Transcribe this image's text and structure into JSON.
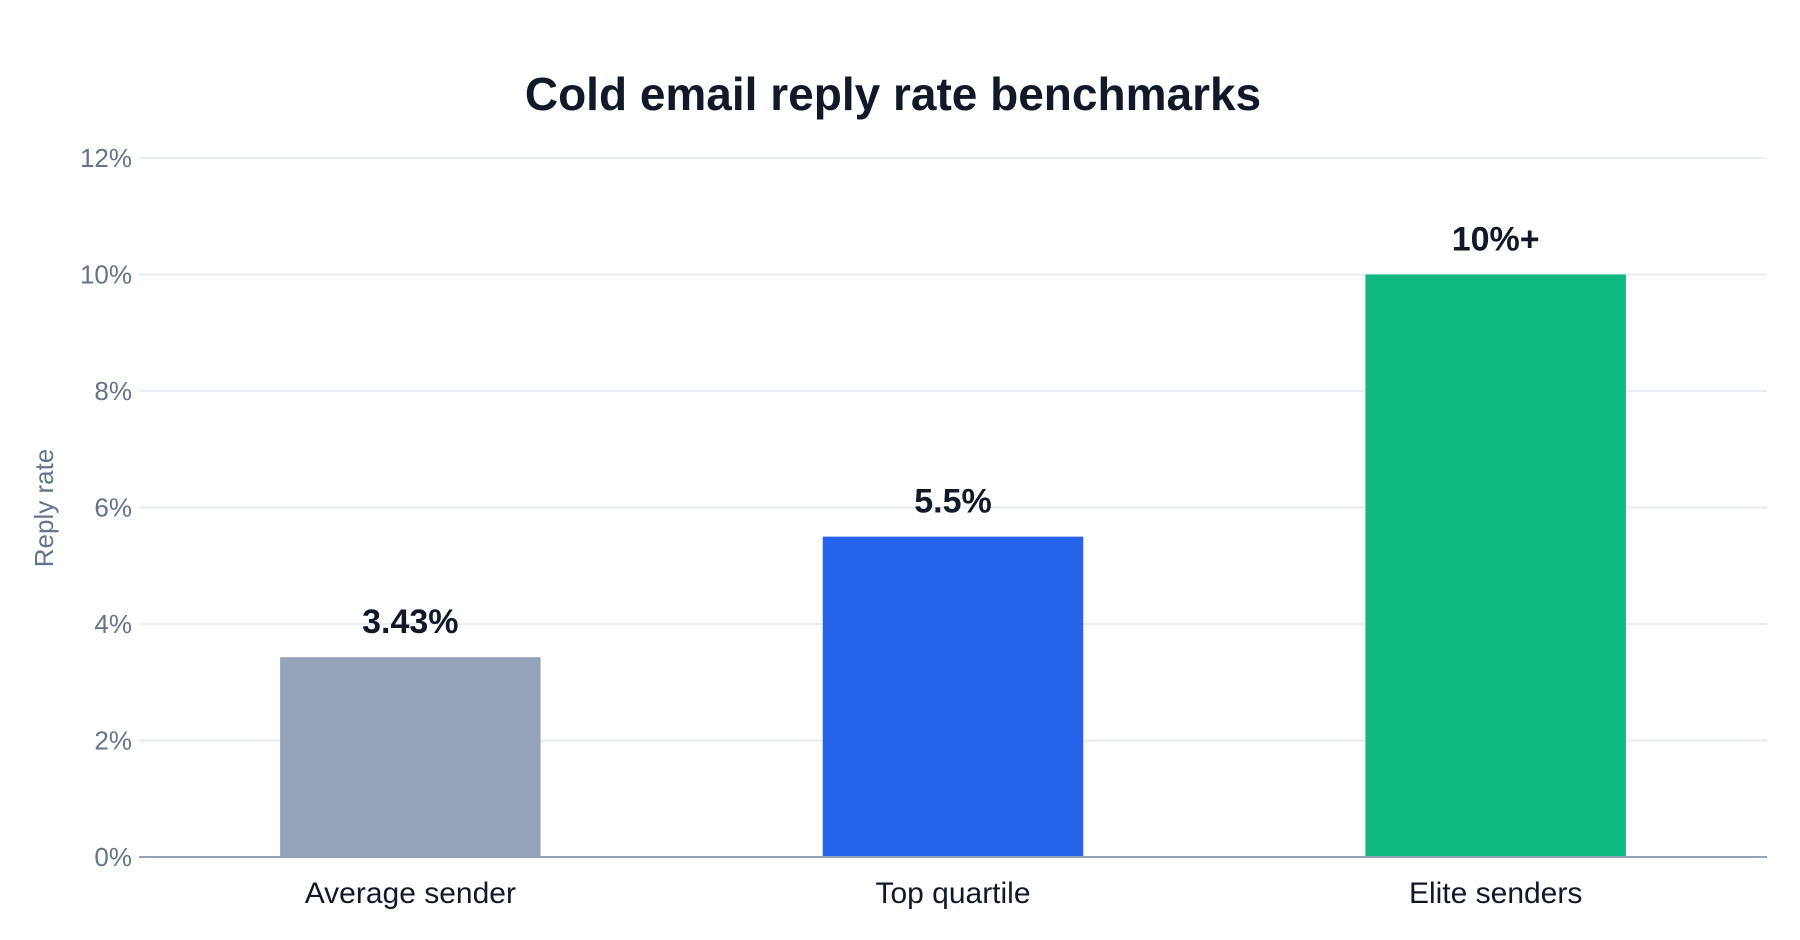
{
  "chart_data": {
    "type": "bar",
    "title": "Cold email reply rate benchmarks",
    "xlabel": "",
    "ylabel": "Reply rate",
    "categories": [
      "Average sender",
      "Top quartile",
      "Elite senders"
    ],
    "values": [
      3.43,
      5.5,
      10
    ],
    "data_labels": [
      "3.43%",
      "5.5%",
      "10%+"
    ],
    "colors": [
      "#94a3b8",
      "#2563eb",
      "#10b981"
    ],
    "ylim": [
      0,
      12
    ],
    "yticks": [
      0,
      2,
      4,
      6,
      8,
      10,
      12
    ],
    "ytick_labels": [
      "0%",
      "2%",
      "4%",
      "6%",
      "8%",
      "10%",
      "12%"
    ],
    "grid": true,
    "grid_color": "#e2e8f0",
    "axis_color": "#94a3b8",
    "legend": "none"
  }
}
